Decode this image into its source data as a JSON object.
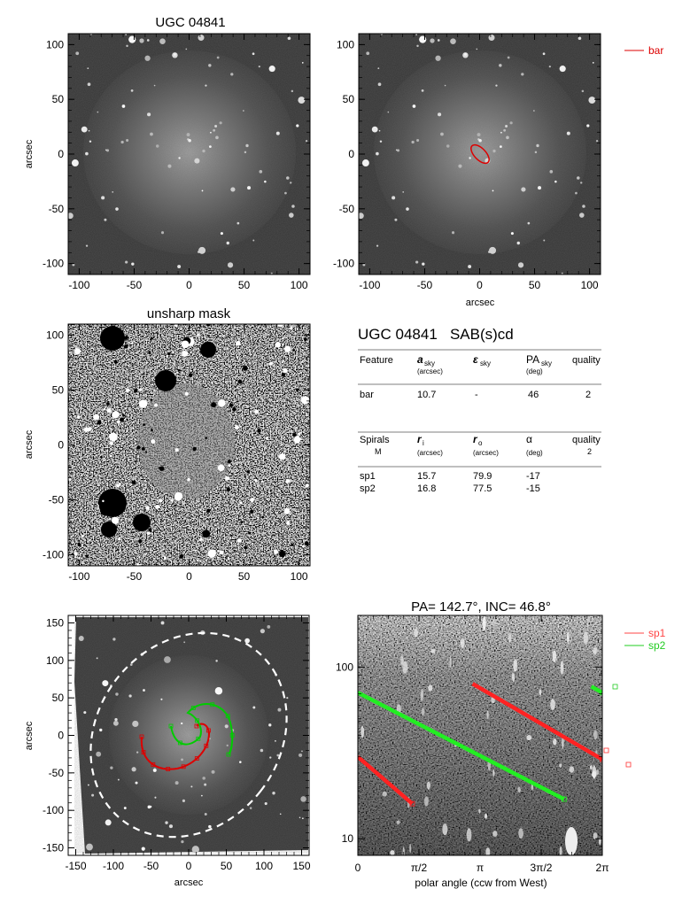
{
  "panels": {
    "p1": {
      "title": "UGC 04841",
      "ylabel": "arcsec",
      "xticks": [
        "-100",
        "-50",
        "0",
        "50",
        "100"
      ],
      "yticks": [
        "100",
        "50",
        "0",
        "-50",
        "-100"
      ]
    },
    "p2": {
      "xlabel": "arcsec",
      "xticks": [
        "-100",
        "-50",
        "0",
        "50",
        "100"
      ],
      "yticks": [
        "100",
        "50",
        "0",
        "-50",
        "-100"
      ],
      "legend": [
        {
          "label": "bar",
          "color": "#dd0000"
        }
      ],
      "bar_ellipse": {
        "center": [
          0,
          0
        ],
        "semi_major_arcsec": 10.7,
        "ellipticity": 0.5,
        "pa_deg": 46,
        "color": "#dd0000"
      }
    },
    "p3": {
      "title": "unsharp mask",
      "ylabel": "arcsec",
      "xticks": [
        "-100",
        "-50",
        "0",
        "50",
        "100"
      ],
      "yticks": [
        "100",
        "50",
        "0",
        "-50",
        "-100"
      ]
    },
    "p5": {
      "ylabel": "arcsec",
      "xlabel": "arcsec",
      "xticks": [
        "-150",
        "-100",
        "-50",
        "0",
        "50",
        "100",
        "150"
      ],
      "yticks": [
        "150",
        "100",
        "50",
        "0",
        "-50",
        "-100",
        "-150"
      ],
      "dashed_ellipse_color": "#ffffff",
      "spiral_colors": {
        "sp1": "#dd0000",
        "sp2": "#00cc00"
      }
    },
    "p6": {
      "title": "PA= 142.7°, INC=  46.8°",
      "xlabel": "polar angle (ccw from West)",
      "xticks": [
        "0",
        "π/2",
        "π",
        "3π/2",
        "2π"
      ],
      "yticks": [
        "100",
        "10"
      ],
      "legend": [
        {
          "label": "sp1",
          "color": "#ff4444"
        },
        {
          "label": "sp2",
          "color": "#22cc22"
        }
      ]
    }
  },
  "info": {
    "title": "UGC 04841   SAB(s)cd",
    "bar_table": {
      "headers": [
        {
          "main": "Feature",
          "sub": "",
          "unit": ""
        },
        {
          "main": "a",
          "sub": "sky",
          "unit": "(arcsec)"
        },
        {
          "main": "ε",
          "sub": "sky",
          "unit": ""
        },
        {
          "main": "PA",
          "sub": "sky",
          "unit": "(deg)"
        },
        {
          "main": "quality",
          "sub": "",
          "unit": ""
        }
      ],
      "row": [
        "bar",
        "10.7",
        "-",
        "46",
        "2"
      ]
    },
    "spiral_table": {
      "headers": [
        {
          "main": "Spirals",
          "sub": "",
          "unit": "M"
        },
        {
          "main": "r",
          "sub": "i",
          "unit": "(arcsec)"
        },
        {
          "main": "r",
          "sub": "o",
          "unit": "(arcsec)"
        },
        {
          "main": "α",
          "sub": "",
          "unit": "(deg)"
        },
        {
          "main": "quality",
          "sub": "",
          "unit": "2"
        }
      ],
      "rows": [
        [
          "sp1",
          "15.7",
          "79.9",
          "-17"
        ],
        [
          "sp2",
          "16.8",
          "77.5",
          "-15"
        ]
      ]
    }
  },
  "chart_data": [
    {
      "panel": "polar-plot",
      "type": "scatter",
      "title": "PA= 142.7°, INC=  46.8°",
      "xlabel": "polar angle (ccw from West)",
      "ylabel": "",
      "xlim": [
        0,
        6.2832
      ],
      "ylim": [
        8,
        200
      ],
      "yscale": "log",
      "series": [
        {
          "name": "sp1",
          "color": "#ff2222",
          "segments": [
            [
              [
                0.0,
                30.0
              ],
              [
                1.4,
                16.0
              ]
            ],
            [
              [
                2.95,
                80.0
              ],
              [
                6.2832,
                29.0
              ]
            ]
          ]
        },
        {
          "name": "sp2",
          "color": "#22ee22",
          "segments": [
            [
              [
                0.0,
                71.0
              ],
              [
                5.3,
                17.0
              ]
            ],
            [
              [
                6.0,
                77.0
              ],
              [
                6.2832,
                71.0
              ]
            ]
          ]
        }
      ]
    }
  ]
}
